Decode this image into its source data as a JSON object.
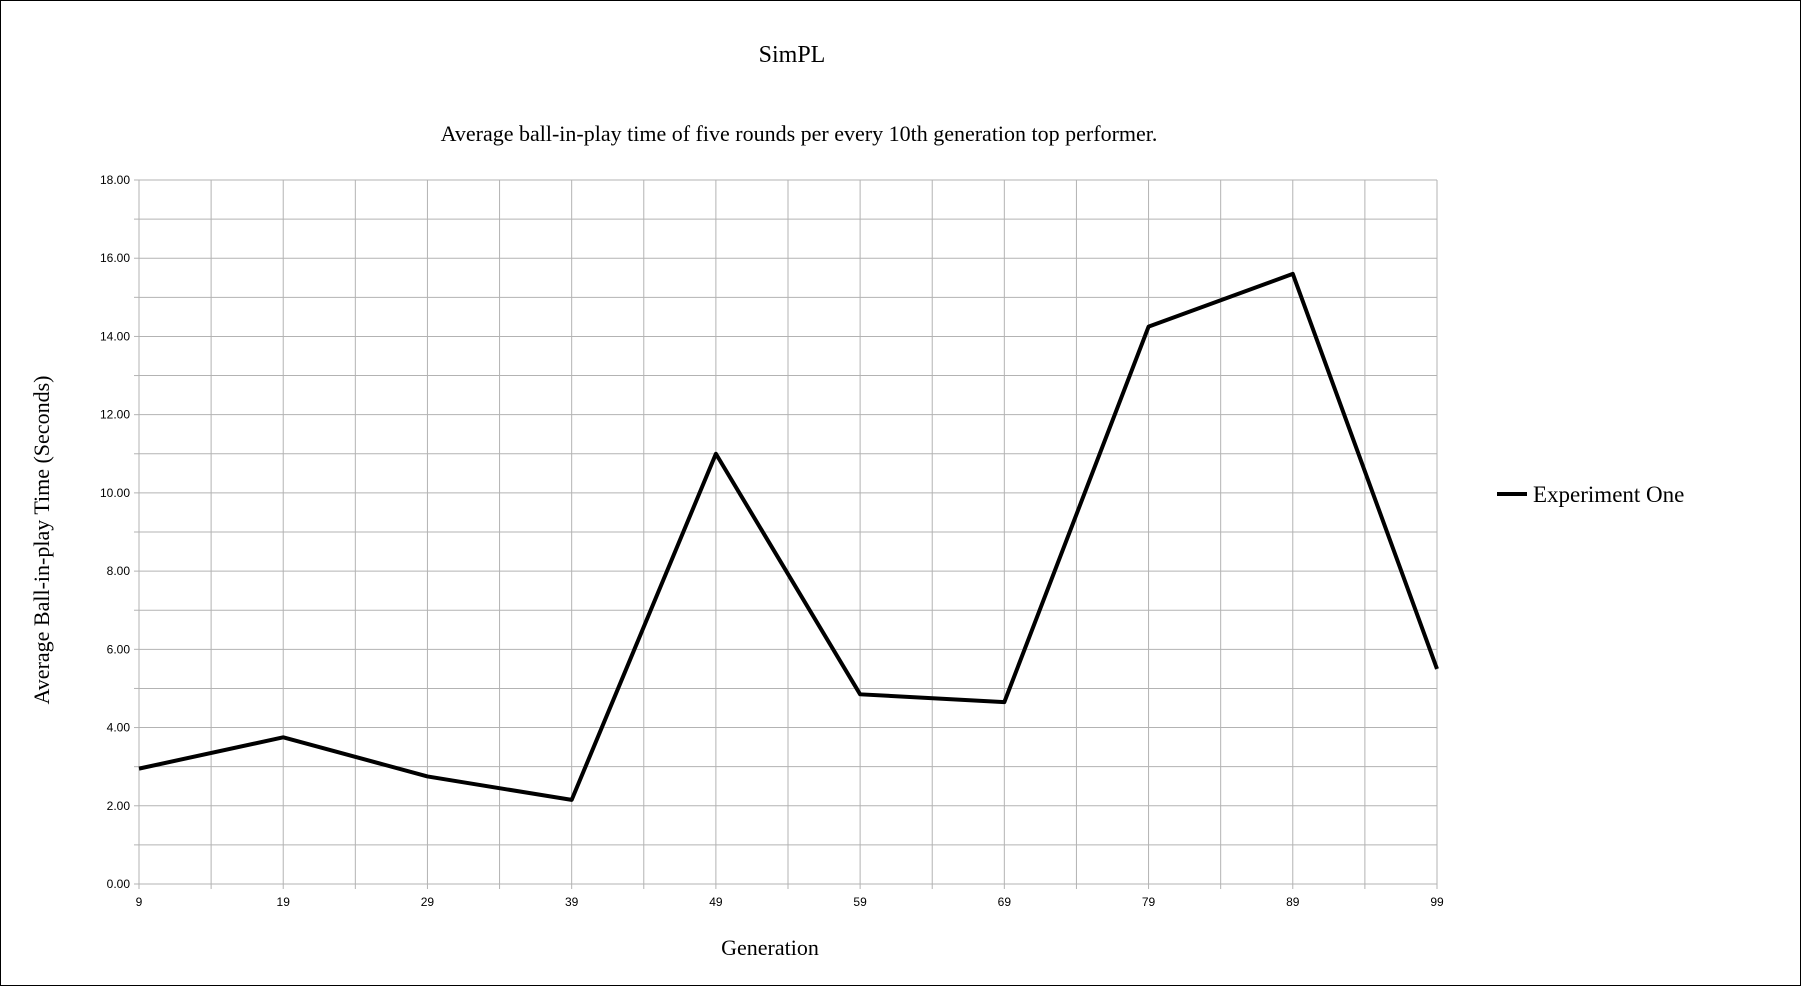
{
  "chart_data": {
    "type": "line",
    "title": "SimPL",
    "subtitle": "Average ball-in-play time of five rounds per every 10th generation top performer.",
    "xlabel": "Generation",
    "ylabel": "Average Ball-in-play Time (Seconds)",
    "categories": [
      "9",
      "19",
      "29",
      "39",
      "49",
      "59",
      "69",
      "79",
      "89",
      "99"
    ],
    "ylim": [
      0,
      18
    ],
    "ytick_step": 2,
    "ytick_labels": [
      "0.00",
      "2.00",
      "4.00",
      "6.00",
      "8.00",
      "10.00",
      "12.00",
      "14.00",
      "16.00",
      "18.00"
    ],
    "grid": true,
    "legend_position": "right",
    "series": [
      {
        "name": "Experiment One",
        "color": "#000000",
        "values": [
          2.95,
          3.75,
          2.75,
          2.15,
          11.0,
          4.85,
          4.65,
          14.25,
          15.6,
          5.5
        ]
      }
    ]
  }
}
